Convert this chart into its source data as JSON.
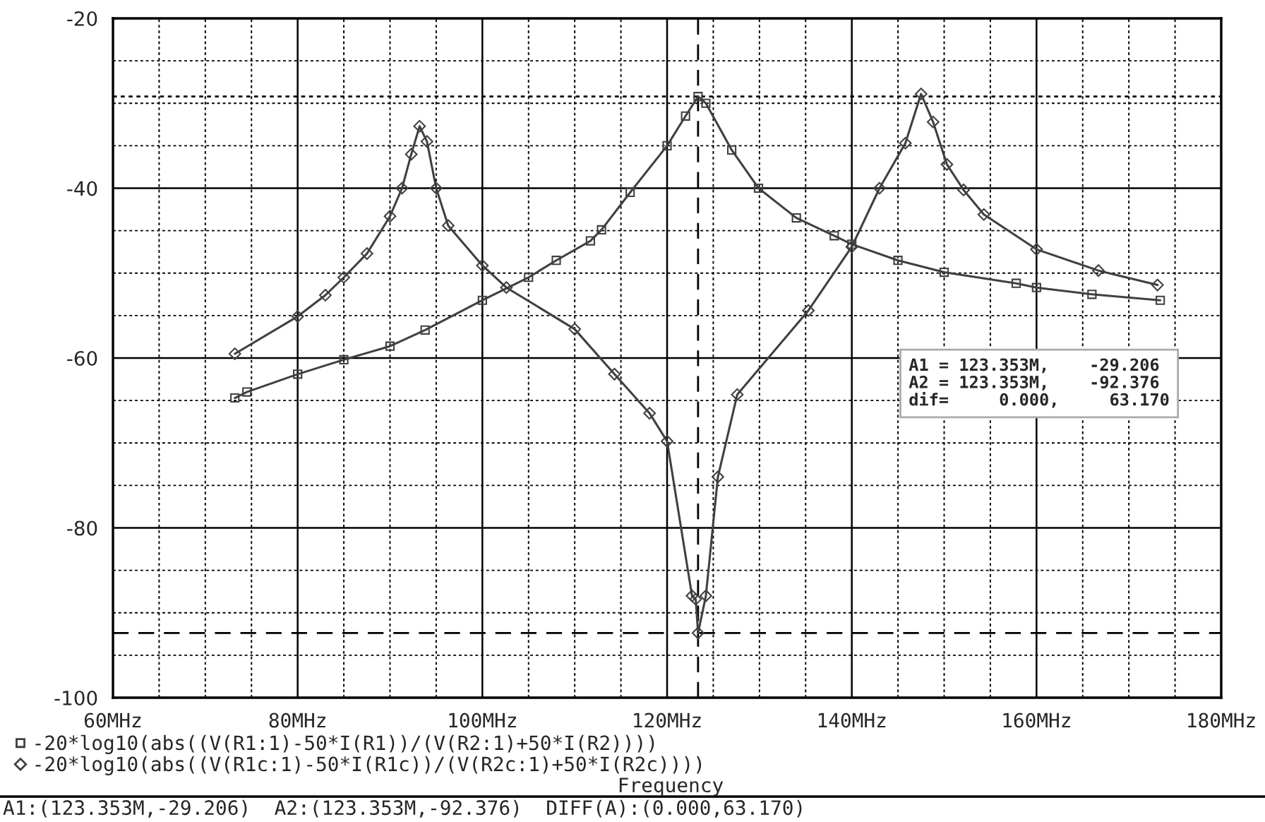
{
  "chart_data": {
    "type": "line",
    "xlabel": "Frequency",
    "x": [
      73.2,
      74.5,
      80,
      85,
      90,
      93.8,
      100,
      105,
      108,
      111.7,
      112.9,
      116,
      120,
      122,
      123.353,
      124.2,
      127,
      129.9,
      134,
      138.1,
      140,
      145,
      150,
      157.8,
      160,
      166,
      173.4
    ],
    "series": [
      {
        "name": "-20*log10(abs((V(R1:1)-50*I(R1))/(V(R2:1)+50*I(R2))))",
        "color": "#404040",
        "marker": "square",
        "values": [
          -64.7,
          -64.0,
          -61.9,
          -60.2,
          -58.6,
          -56.7,
          -53.2,
          -50.5,
          -48.5,
          -46.2,
          -44.9,
          -40.5,
          -35.0,
          -31.5,
          -29.206,
          -30.0,
          -35.5,
          -40.0,
          -43.5,
          -45.6,
          -46.6,
          -48.5,
          -49.9,
          -51.2,
          -51.7,
          -52.5,
          -53.2
        ]
      },
      {
        "name": "-20*log10(abs((V(R1c:1)-50*I(R1c))/(V(R2c:1)+50*I(R2c))))",
        "color": "#404040",
        "marker": "diamond",
        "x": [
          73.2,
          80,
          83.0,
          85,
          87.5,
          90,
          91.3,
          92.3,
          93.2,
          94,
          95,
          96.3,
          100,
          102.6,
          110,
          114.3,
          118.1,
          120,
          122.7,
          123.1,
          123.353,
          124.2,
          125.5,
          127.6,
          135.3,
          140,
          143,
          145.8,
          147.5,
          148.8,
          150.3,
          152.1,
          154.3,
          160,
          166.7,
          173.1
        ],
        "values": [
          -59.5,
          -55.1,
          -52.6,
          -50.5,
          -47.7,
          -43.3,
          -40.0,
          -36.0,
          -32.7,
          -34.5,
          -40.0,
          -44.4,
          -49.1,
          -51.7,
          -56.6,
          -61.9,
          -66.5,
          -69.8,
          -88.0,
          -88.4,
          -92.376,
          -88.0,
          -74.0,
          -64.3,
          -54.4,
          -46.9,
          -40.0,
          -34.7,
          -28.9,
          -32.2,
          -37.2,
          -40.2,
          -43.1,
          -47.2,
          -49.7,
          -51.4
        ]
      }
    ],
    "xlim": [
      60,
      180
    ],
    "xticks": [
      {
        "value": 60,
        "label": "60MHz"
      },
      {
        "value": 80,
        "label": "80MHz"
      },
      {
        "value": 100,
        "label": "100MHz"
      },
      {
        "value": 120,
        "label": "120MHz"
      },
      {
        "value": 140,
        "label": "140MHz"
      },
      {
        "value": 160,
        "label": "160MHz"
      },
      {
        "value": 180,
        "label": "180MHz"
      }
    ],
    "ylim": [
      -100,
      -20
    ],
    "yticks": [
      -100,
      -80,
      -60,
      -40,
      -20
    ],
    "grid": true,
    "legend": "bottom left",
    "line_style": "solid",
    "ref_lines": [
      {
        "axis": "x",
        "value": 123.353,
        "line_style": "dashed"
      },
      {
        "axis": "y",
        "value": -29.206,
        "line_style": "dotted"
      },
      {
        "axis": "y",
        "value": -92.376,
        "line_style": "dashed"
      }
    ],
    "annotations": [
      "A1 = 123.353M,    -29.206\nA2 = 123.353M,    -92.376\ndif=     0.000,     63.170",
      "A1:(123.353M,-29.206)  A2:(123.353M,-92.376)  DIFF(A):(0.000,63.170)"
    ]
  }
}
